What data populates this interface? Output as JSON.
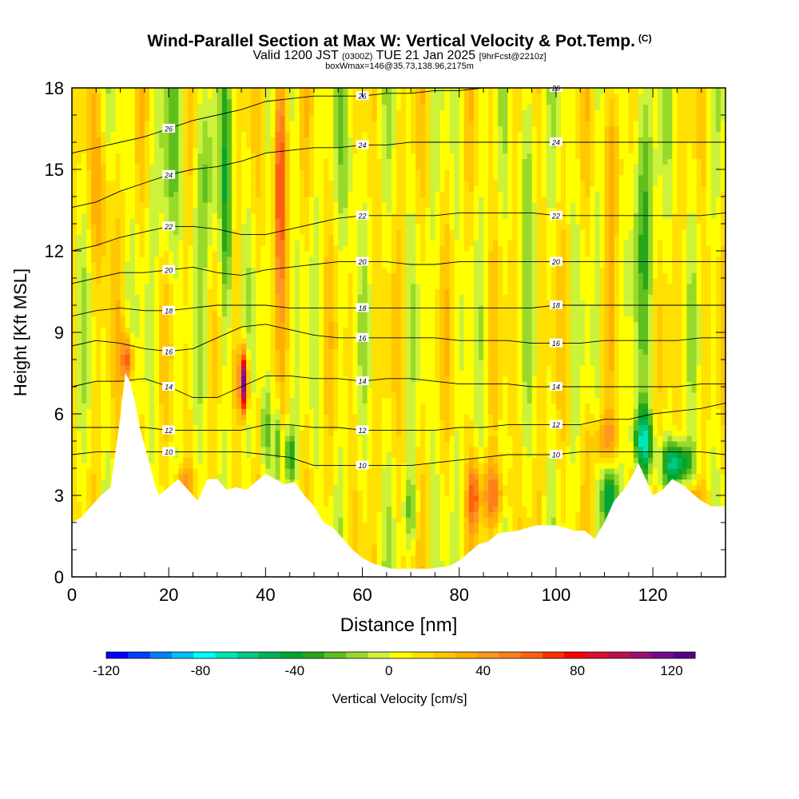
{
  "title": {
    "main": "Wind-Parallel Section at Max W: Vertical Velocity & Pot.Temp.",
    "copyright": "(C)",
    "valid_prefix": "Valid 1200 JST",
    "utc": "(0300Z)",
    "date": "TUE 21 Jan 2025",
    "forecast": "[9hrFcst@2210z]",
    "box": "boxWmax=146@35.73,138.96,2175m"
  },
  "chart_data": {
    "type": "heatmap",
    "xlabel": "Distance [nm]",
    "ylabel": "Height [Kft MSL]",
    "xlim": [
      0,
      135
    ],
    "ylim": [
      0,
      18
    ],
    "x_ticks": [
      "0",
      "20",
      "40",
      "60",
      "80",
      "100",
      "120"
    ],
    "y_ticks": [
      "0",
      "3",
      "6",
      "9",
      "12",
      "15",
      "18"
    ],
    "colorbar": {
      "label": "Vertical Velocity [cm/s]",
      "range": [
        -120,
        130
      ],
      "ticks": [
        "-120",
        "-80",
        "-40",
        "0",
        "40",
        "80",
        "120"
      ],
      "colors": [
        "#0000ff",
        "#0040ff",
        "#0080ff",
        "#00bfff",
        "#00ffff",
        "#00e6b8",
        "#00cc80",
        "#00b359",
        "#00a633",
        "#26a61a",
        "#5fbf1f",
        "#99d92b",
        "#ccf23a",
        "#ffff00",
        "#ffe000",
        "#ffc800",
        "#ffb000",
        "#ff9820",
        "#ff7f1a",
        "#ff6010",
        "#ff3000",
        "#ff0000",
        "#dd1030",
        "#bb1050",
        "#991070",
        "#770890",
        "#55008a"
      ]
    },
    "terrain_kft": [
      [
        0,
        2.0
      ],
      [
        2,
        2.2
      ],
      [
        4,
        2.6
      ],
      [
        6,
        3.0
      ],
      [
        8,
        3.3
      ],
      [
        10,
        5.9
      ],
      [
        11,
        7.5
      ],
      [
        12,
        7.2
      ],
      [
        13,
        6.5
      ],
      [
        14,
        5.5
      ],
      [
        16,
        4.2
      ],
      [
        17,
        3.5
      ],
      [
        18,
        3.0
      ],
      [
        20,
        3.3
      ],
      [
        22,
        3.6
      ],
      [
        24,
        3.2
      ],
      [
        26,
        2.8
      ],
      [
        28,
        3.6
      ],
      [
        30,
        3.6
      ],
      [
        32,
        3.2
      ],
      [
        34,
        3.3
      ],
      [
        36,
        3.2
      ],
      [
        38,
        3.5
      ],
      [
        40,
        3.8
      ],
      [
        42,
        3.6
      ],
      [
        44,
        3.4
      ],
      [
        46,
        3.5
      ],
      [
        48,
        3.0
      ],
      [
        50,
        2.6
      ],
      [
        52,
        2.0
      ],
      [
        54,
        1.8
      ],
      [
        56,
        1.4
      ],
      [
        58,
        1.0
      ],
      [
        60,
        0.7
      ],
      [
        62,
        0.5
      ],
      [
        64,
        0.4
      ],
      [
        66,
        0.3
      ],
      [
        70,
        0.3
      ],
      [
        74,
        0.3
      ],
      [
        78,
        0.4
      ],
      [
        80,
        0.6
      ],
      [
        82,
        0.9
      ],
      [
        84,
        1.2
      ],
      [
        86,
        1.3
      ],
      [
        88,
        1.6
      ],
      [
        92,
        1.7
      ],
      [
        96,
        1.9
      ],
      [
        100,
        1.9
      ],
      [
        104,
        1.7
      ],
      [
        106,
        1.7
      ],
      [
        108,
        1.4
      ],
      [
        110,
        2.0
      ],
      [
        112,
        2.8
      ],
      [
        114,
        3.2
      ],
      [
        116,
        3.8
      ],
      [
        117,
        4.2
      ],
      [
        118,
        3.8
      ],
      [
        120,
        3.0
      ],
      [
        122,
        3.2
      ],
      [
        124,
        3.6
      ],
      [
        126,
        3.4
      ],
      [
        128,
        3.1
      ],
      [
        130,
        2.8
      ],
      [
        132,
        2.6
      ],
      [
        135,
        2.6
      ]
    ],
    "w_field": {
      "background": 8,
      "features": [
        {
          "x": 35.5,
          "y": 7.2,
          "width": 0.9,
          "height": 1.2,
          "value": 120
        },
        {
          "x": 43.0,
          "y": 15.0,
          "width": 1.4,
          "height": 4.0,
          "value": 60
        },
        {
          "x": 11.5,
          "y": 8.0,
          "width": 1.2,
          "height": 0.9,
          "value": 60
        },
        {
          "x": 32.0,
          "y": 13.0,
          "width": 1.2,
          "height": 5.0,
          "value": -40
        },
        {
          "x": 28.0,
          "y": 15.0,
          "width": 2.0,
          "height": 3.5,
          "value": -30
        },
        {
          "x": 20.0,
          "y": 15.0,
          "width": 2.2,
          "height": 4.0,
          "value": -25
        },
        {
          "x": 40.0,
          "y": 5.5,
          "width": 0.8,
          "height": 1.5,
          "value": -35
        },
        {
          "x": 42.5,
          "y": 5.0,
          "width": 0.8,
          "height": 1.5,
          "value": -35
        },
        {
          "x": 45.0,
          "y": 4.5,
          "width": 1.2,
          "height": 1.0,
          "value": -40
        },
        {
          "x": 57.0,
          "y": 15.5,
          "width": 2.0,
          "height": 3.5,
          "value": -20
        },
        {
          "x": 70.0,
          "y": 2.5,
          "width": 1.5,
          "height": 1.2,
          "value": -30
        },
        {
          "x": 87.0,
          "y": 3.0,
          "width": 2.5,
          "height": 1.2,
          "value": 45
        },
        {
          "x": 83.0,
          "y": 3.0,
          "width": 1.2,
          "height": 1.2,
          "value": 45
        },
        {
          "x": 94.0,
          "y": 15.0,
          "width": 2.0,
          "height": 4.0,
          "value": -20
        },
        {
          "x": 118.0,
          "y": 14.0,
          "width": 3.0,
          "height": 5.0,
          "value": -30
        },
        {
          "x": 118.0,
          "y": 5.0,
          "width": 2.0,
          "height": 1.2,
          "value": -70
        },
        {
          "x": 125.0,
          "y": 4.2,
          "width": 3.0,
          "height": 0.8,
          "value": -70
        },
        {
          "x": 111.0,
          "y": 3.0,
          "width": 1.5,
          "height": 1.2,
          "value": -60
        },
        {
          "x": 112.0,
          "y": 15.5,
          "width": 2.0,
          "height": 3.0,
          "value": 30
        },
        {
          "x": 6.0,
          "y": 14.0,
          "width": 2.0,
          "height": 3.0,
          "value": 25
        },
        {
          "x": 110.0,
          "y": 5.0,
          "width": 3.0,
          "height": 1.0,
          "value": 30
        },
        {
          "x": 128.0,
          "y": 2.8,
          "width": 2.0,
          "height": 0.6,
          "value": 35
        },
        {
          "x": 23.0,
          "y": 3.5,
          "width": 2.0,
          "height": 0.6,
          "value": 30
        }
      ]
    },
    "theta_contours": [
      {
        "level": "10",
        "y": [
          4.5,
          4.6,
          4.6,
          4.6,
          4.6,
          4.6,
          4.6,
          4.6,
          4.5,
          4.4,
          4.1,
          4.1,
          4.1,
          4.1,
          4.1,
          4.2,
          4.3,
          4.4,
          4.5,
          4.5,
          4.5,
          4.6,
          4.6,
          4.6,
          4.6,
          4.6,
          4.6,
          4.5
        ]
      },
      {
        "level": "12",
        "y": [
          5.5,
          5.5,
          5.5,
          5.5,
          5.4,
          5.4,
          5.4,
          5.4,
          5.6,
          5.6,
          5.5,
          5.5,
          5.4,
          5.4,
          5.4,
          5.4,
          5.5,
          5.5,
          5.6,
          5.6,
          5.6,
          5.6,
          5.8,
          5.8,
          6.0,
          6.1,
          6.2,
          6.4
        ]
      },
      {
        "level": "14",
        "y": [
          7.0,
          7.2,
          7.2,
          7.3,
          7.0,
          6.6,
          6.6,
          7.0,
          7.4,
          7.4,
          7.3,
          7.3,
          7.2,
          7.3,
          7.3,
          7.2,
          7.1,
          7.1,
          7.1,
          7.0,
          7.0,
          7.0,
          7.0,
          7.0,
          7.0,
          7.0,
          7.1,
          7.1
        ]
      },
      {
        "level": "16",
        "y": [
          8.5,
          8.7,
          8.6,
          8.4,
          8.3,
          8.4,
          8.8,
          9.2,
          9.3,
          9.1,
          8.9,
          8.8,
          8.8,
          8.8,
          8.8,
          8.8,
          8.7,
          8.7,
          8.7,
          8.6,
          8.6,
          8.6,
          8.7,
          8.7,
          8.7,
          8.7,
          8.8,
          8.8
        ]
      },
      {
        "level": "18",
        "y": [
          9.6,
          9.8,
          9.9,
          9.8,
          9.8,
          9.9,
          10.0,
          10.0,
          10.0,
          9.9,
          9.9,
          9.9,
          9.9,
          9.9,
          9.9,
          9.9,
          9.9,
          9.9,
          9.9,
          9.9,
          10.0,
          10.0,
          10.0,
          10.0,
          10.0,
          10.0,
          10.0,
          10.0
        ]
      },
      {
        "level": "20",
        "y": [
          10.8,
          11.0,
          11.2,
          11.2,
          11.3,
          11.4,
          11.2,
          11.1,
          11.3,
          11.4,
          11.5,
          11.6,
          11.6,
          11.6,
          11.5,
          11.5,
          11.6,
          11.6,
          11.6,
          11.6,
          11.6,
          11.6,
          11.6,
          11.6,
          11.6,
          11.6,
          11.6,
          11.6
        ]
      },
      {
        "level": "22",
        "y": [
          12.0,
          12.2,
          12.5,
          12.7,
          12.9,
          12.9,
          12.8,
          12.6,
          12.6,
          12.8,
          13.0,
          13.2,
          13.3,
          13.3,
          13.3,
          13.3,
          13.4,
          13.4,
          13.4,
          13.4,
          13.3,
          13.3,
          13.3,
          13.3,
          13.3,
          13.3,
          13.3,
          13.4
        ]
      },
      {
        "level": "24",
        "y": [
          13.6,
          13.8,
          14.2,
          14.5,
          14.8,
          15.0,
          15.1,
          15.3,
          15.6,
          15.7,
          15.8,
          15.8,
          15.9,
          15.9,
          16.0,
          16.0,
          16.0,
          16.0,
          16.0,
          16.0,
          16.0,
          16.0,
          16.0,
          16.0,
          16.0,
          16.0,
          16.0,
          16.0
        ]
      },
      {
        "level": "26",
        "y": [
          15.6,
          15.8,
          16.0,
          16.2,
          16.5,
          16.8,
          17.0,
          17.2,
          17.5,
          17.6,
          17.7,
          17.7,
          17.7,
          17.8,
          17.8,
          17.9,
          17.9,
          18.0,
          18.0,
          18.0,
          18.0,
          18.0,
          18.0,
          18.0,
          18.0,
          18.0,
          18.0,
          18.0
        ]
      }
    ]
  }
}
